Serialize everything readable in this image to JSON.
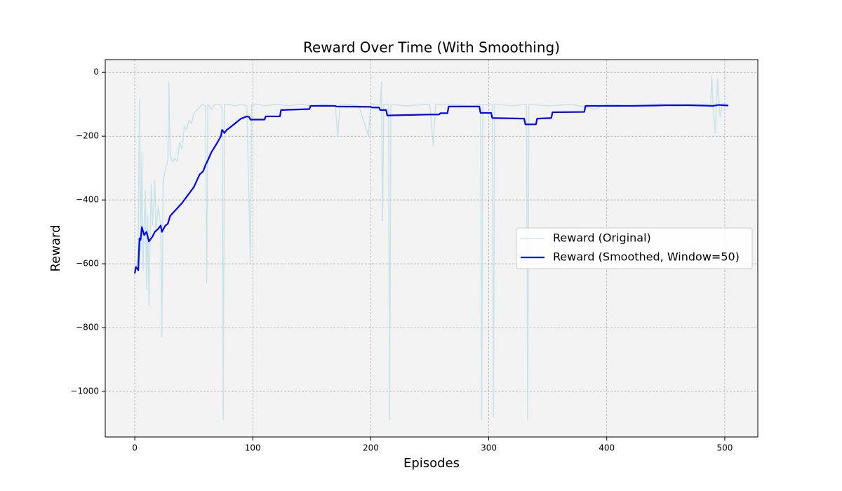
{
  "chart_data": {
    "type": "line",
    "title": "Reward Over Time (With Smoothing)",
    "x_label": "Episodes",
    "y_label": "Reward",
    "xlim": [
      -25,
      528
    ],
    "ylim": [
      -1143,
      40
    ],
    "xticks": [
      0,
      100,
      200,
      300,
      400,
      500
    ],
    "yticks": [
      {
        "value": -1000,
        "label": "−1000"
      },
      {
        "value": -800,
        "label": "−800"
      },
      {
        "value": -600,
        "label": "−600"
      },
      {
        "value": -400,
        "label": "−400"
      },
      {
        "value": -200,
        "label": "−200"
      },
      0
    ],
    "grid": true,
    "legend": "center right",
    "series": [
      {
        "name": "Reward (Original)",
        "color": "#add8e6",
        "x": [
          0,
          2,
          3,
          4,
          5,
          6,
          7,
          8,
          9,
          10,
          11,
          12,
          13,
          14,
          15,
          16,
          17,
          18,
          20,
          22,
          23,
          24,
          26,
          28,
          29,
          30,
          32,
          34,
          36,
          38,
          40,
          42,
          44,
          46,
          48,
          50,
          52,
          55,
          57,
          60,
          61,
          62,
          65,
          68,
          72,
          74,
          75,
          76,
          80,
          85,
          90,
          95,
          98,
          99,
          105,
          110,
          120,
          130,
          140,
          150,
          160,
          170,
          172,
          174,
          180,
          190,
          198,
          200,
          208,
          209,
          210,
          211,
          215,
          216,
          217,
          230,
          250,
          253,
          255,
          270,
          285,
          293,
          294,
          295,
          303,
          304,
          305,
          320,
          332,
          333,
          334,
          350,
          370,
          390,
          400,
          420,
          440,
          460,
          480,
          488,
          489,
          490,
          492,
          494,
          496,
          498,
          503
        ],
        "values": [
          -630,
          -600,
          -520,
          -85,
          -560,
          -250,
          -620,
          -480,
          -370,
          -680,
          -450,
          -730,
          -520,
          -350,
          -480,
          -420,
          -340,
          -500,
          -420,
          -480,
          -830,
          -350,
          -300,
          -280,
          -30,
          -260,
          -280,
          -270,
          -280,
          -220,
          -240,
          -170,
          -180,
          -150,
          -160,
          -130,
          -120,
          -110,
          -100,
          -105,
          -660,
          -100,
          -115,
          -100,
          -100,
          -110,
          -1090,
          -100,
          -100,
          -105,
          -100,
          -105,
          -600,
          -100,
          -100,
          -105,
          -100,
          -105,
          -100,
          -105,
          -100,
          -105,
          -200,
          -100,
          -100,
          -105,
          -200,
          -100,
          -100,
          -30,
          -465,
          -100,
          -100,
          -1090,
          -100,
          -105,
          -100,
          -230,
          -100,
          -100,
          -105,
          -100,
          -1090,
          -100,
          -100,
          -1080,
          -100,
          -105,
          -100,
          -1090,
          -100,
          -105,
          -100,
          -115,
          -100,
          -105,
          -100,
          -105,
          -100,
          -100,
          -10,
          -100,
          -190,
          -20,
          -140,
          -100,
          -100
        ]
      },
      {
        "name": "Reward (Smoothed, Window=50)",
        "color": "#0000ff",
        "x": [
          0,
          1,
          3,
          4,
          5,
          6,
          8,
          10,
          12,
          15,
          17,
          20,
          22,
          23,
          26,
          28,
          30,
          35,
          40,
          45,
          50,
          55,
          58,
          60,
          62,
          65,
          70,
          73,
          74,
          76,
          78,
          80,
          85,
          90,
          95,
          97,
          98,
          110,
          111,
          123,
          124,
          148,
          149,
          170,
          171,
          200,
          201,
          207,
          208,
          213,
          214,
          250,
          258,
          259,
          265,
          266,
          292,
          293,
          302,
          303,
          330,
          331,
          340,
          341,
          353,
          354,
          381,
          382,
          420,
          440,
          450,
          470,
          490,
          495,
          503
        ],
        "values": [
          -630,
          -610,
          -620,
          -520,
          -525,
          -485,
          -510,
          -500,
          -530,
          -515,
          -500,
          -490,
          -480,
          -500,
          -480,
          -475,
          -450,
          -430,
          -410,
          -385,
          -360,
          -320,
          -310,
          -290,
          -275,
          -250,
          -220,
          -200,
          -180,
          -190,
          -180,
          -175,
          -160,
          -145,
          -138,
          -140,
          -148,
          -148,
          -138,
          -138,
          -118,
          -115,
          -105,
          -105,
          -107,
          -108,
          -110,
          -110,
          -118,
          -118,
          -135,
          -132,
          -132,
          -128,
          -128,
          -107,
          -107,
          -127,
          -127,
          -143,
          -145,
          -163,
          -163,
          -145,
          -143,
          -125,
          -124,
          -105,
          -105,
          -104,
          -103,
          -103,
          -105,
          -102,
          -104
        ]
      }
    ]
  }
}
